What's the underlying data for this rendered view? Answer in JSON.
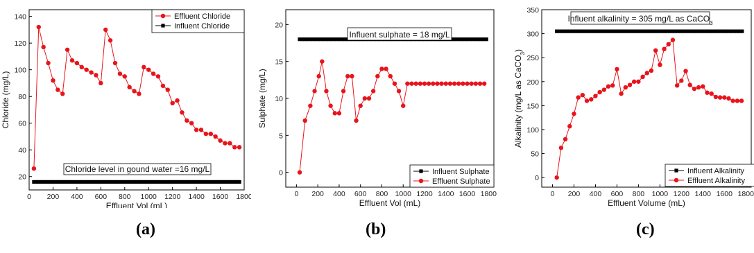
{
  "chart_data": [
    {
      "type": "line",
      "panel": "(a)",
      "xlabel": "Effluent Vol (mL)",
      "ylabel": "Chloride (mg/L)",
      "xlim": [
        0,
        1800
      ],
      "ylim": [
        10,
        145
      ],
      "xticks": [
        0,
        200,
        400,
        600,
        800,
        1000,
        1200,
        1400,
        1600,
        1800
      ],
      "yticks": [
        20,
        40,
        60,
        80,
        100,
        120,
        140
      ],
      "legend_position": "top-right",
      "annotation": "Chloride level in gound water =16 mg/L",
      "series": [
        {
          "name": "Effluent  Chloride",
          "marker": "circle",
          "color": "#e8141b",
          "x": [
            40,
            80,
            120,
            160,
            200,
            240,
            280,
            320,
            360,
            400,
            440,
            480,
            520,
            560,
            600,
            640,
            680,
            720,
            760,
            800,
            840,
            880,
            920,
            960,
            1000,
            1040,
            1080,
            1120,
            1160,
            1200,
            1240,
            1280,
            1320,
            1360,
            1400,
            1440,
            1480,
            1520,
            1560,
            1600,
            1640,
            1680,
            1720,
            1760
          ],
          "y": [
            26,
            132,
            117,
            105,
            92,
            85,
            82,
            115,
            107,
            105,
            102,
            100,
            98,
            96,
            90,
            130,
            122,
            105,
            97,
            95,
            87,
            84,
            82,
            102,
            100,
            97,
            95,
            88,
            85,
            75,
            77,
            68,
            62,
            60,
            55,
            55,
            52,
            52,
            50,
            47,
            45,
            45,
            42,
            42
          ]
        },
        {
          "name": "Influent Chloride",
          "marker": "square",
          "color": "#000000",
          "x_range": [
            40,
            1760
          ],
          "x_step": 20,
          "y_constant": 16
        }
      ]
    },
    {
      "type": "line",
      "panel": "(b)",
      "xlabel": "Effluent Vol (mL)",
      "ylabel": "Sulphate (mg/L)",
      "xlim": [
        -100,
        1850
      ],
      "ylim": [
        -2,
        22
      ],
      "xticks": [
        0,
        200,
        400,
        600,
        800,
        1000,
        1200,
        1400,
        1600,
        1800
      ],
      "yticks": [
        0,
        5,
        10,
        15,
        20
      ],
      "legend_position": "bottom-right",
      "annotation": "Influent sulphate = 18 mg/L",
      "series": [
        {
          "name": "Influent  Sulphate",
          "marker": "square",
          "color": "#000000",
          "x_range": [
            30,
            1780
          ],
          "x_step": 25,
          "y_constant": 18
        },
        {
          "name": "Effluent  Sulphate",
          "marker": "circle",
          "color": "#e8141b",
          "x": [
            30,
            80,
            130,
            170,
            210,
            240,
            280,
            320,
            360,
            400,
            440,
            480,
            520,
            560,
            600,
            640,
            680,
            720,
            760,
            800,
            840,
            880,
            920,
            960,
            1000,
            1040,
            1080,
            1120,
            1160,
            1200,
            1240,
            1280,
            1320,
            1360,
            1400,
            1440,
            1480,
            1520,
            1560,
            1600,
            1640,
            1680,
            1720,
            1760
          ],
          "y": [
            0,
            7,
            9,
            11,
            13,
            15,
            11,
            9,
            8,
            8,
            11,
            13,
            13,
            7,
            9,
            10,
            10,
            11,
            13,
            14,
            14,
            13,
            12,
            11,
            9,
            12,
            12,
            12,
            12,
            12,
            12,
            12,
            12,
            12,
            12,
            12,
            12,
            12,
            12,
            12,
            12,
            12,
            12,
            12
          ]
        }
      ]
    },
    {
      "type": "line",
      "panel": "(c)",
      "xlabel": "Effluent Volume (mL)",
      "ylabel": "Alkalinity (mg/L as CaCO3)",
      "xlim": [
        -100,
        1850
      ],
      "ylim": [
        -20,
        350
      ],
      "xticks": [
        0,
        200,
        400,
        600,
        800,
        1000,
        1200,
        1400,
        1600,
        1800
      ],
      "yticks": [
        0,
        50,
        100,
        150,
        200,
        250,
        300,
        350
      ],
      "legend_position": "bottom-right",
      "annotation": "Influent alkalinity = 305 mg/L as CaCO3",
      "series": [
        {
          "name": "Influent   Alkalinity",
          "marker": "square",
          "color": "#000000",
          "x_range": [
            40,
            1780
          ],
          "x_step": 25,
          "y_constant": 305
        },
        {
          "name": "Effluent  Alkalinity",
          "marker": "circle",
          "color": "#e8141b",
          "x": [
            40,
            80,
            120,
            160,
            200,
            240,
            280,
            320,
            360,
            400,
            440,
            480,
            520,
            560,
            600,
            640,
            680,
            720,
            760,
            800,
            840,
            880,
            920,
            960,
            1000,
            1040,
            1080,
            1120,
            1160,
            1200,
            1240,
            1280,
            1320,
            1360,
            1400,
            1440,
            1480,
            1520,
            1560,
            1600,
            1640,
            1680,
            1720,
            1760
          ],
          "y": [
            0,
            62,
            80,
            107,
            133,
            167,
            172,
            160,
            163,
            170,
            178,
            183,
            190,
            192,
            226,
            175,
            188,
            193,
            200,
            200,
            210,
            218,
            223,
            265,
            235,
            268,
            278,
            287,
            192,
            202,
            222,
            193,
            185,
            188,
            190,
            177,
            175,
            168,
            167,
            167,
            165,
            160,
            160,
            160
          ]
        }
      ]
    }
  ]
}
